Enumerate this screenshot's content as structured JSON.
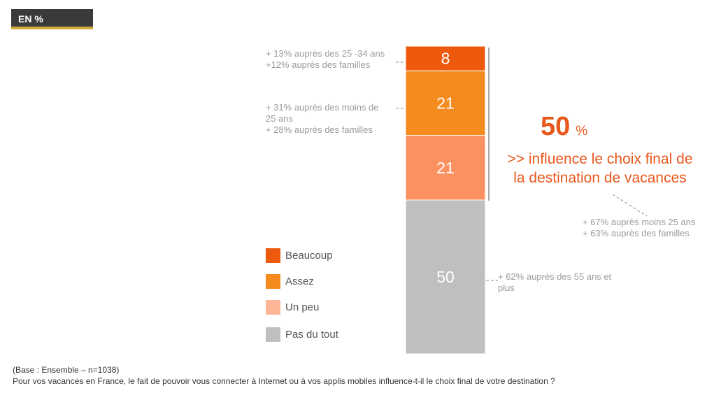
{
  "badge": {
    "label": "EN %"
  },
  "chart_data": {
    "type": "bar",
    "stacked": true,
    "categories": [
      ""
    ],
    "series": [
      {
        "name": "Pas du tout",
        "values": [
          50
        ],
        "color": "#bfbfbf"
      },
      {
        "name": "Un peu",
        "values": [
          21
        ],
        "color": "#fb9060"
      },
      {
        "name": "Assez",
        "values": [
          21
        ],
        "color": "#f58a1f"
      },
      {
        "name": "Beaucoup",
        "values": [
          8
        ],
        "color": "#ee5a0d"
      }
    ],
    "data_labels": [
      "50",
      "21",
      "21",
      "8"
    ],
    "ylim": [
      0,
      100
    ],
    "grid": false,
    "legend_position": "left"
  },
  "legend": [
    {
      "label": "Beaucoup",
      "color": "#ee5a0d"
    },
    {
      "label": "Assez",
      "color": "#f58a1f"
    },
    {
      "label": "Un peu",
      "color": "#fcb597"
    },
    {
      "label": "Pas du tout",
      "color": "#bfbfbf"
    }
  ],
  "annotations": {
    "beaucoup": "+ 13% auprès des 25 -34 ans\n+12% auprès des familles",
    "assez": "+ 31% auprès des moins de\n25 ans\n+ 28% auprès des familles",
    "pas_du_tout": "+ 62% auprès des 55 ans et\nplus",
    "highlight_value": "50",
    "highlight_unit": "%",
    "highlight_text": ">> influence le choix final de\nla destination de vacances",
    "highlight_note": "+ 67% auprès moins 25 ans\n+ 63% auprès des familles"
  },
  "footer": {
    "base": "(Base : Ensemble – n=1038)",
    "question": "Pour vos vacances en France, le fait de pouvoir vous connecter à Internet ou à vos applis mobiles influence-t-il le choix final de votre destination ?"
  }
}
